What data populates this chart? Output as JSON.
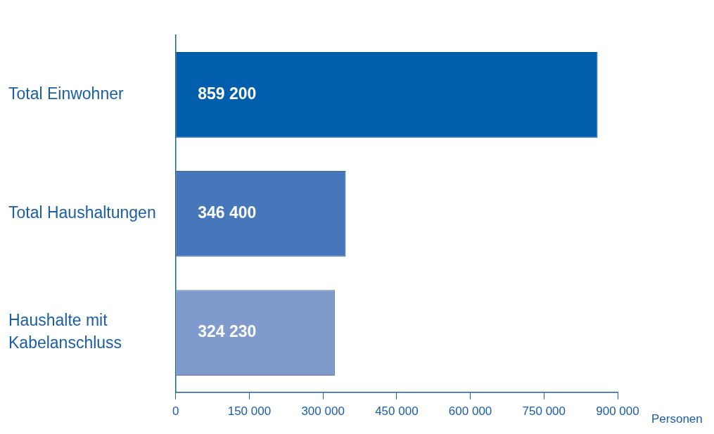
{
  "chart_data": {
    "type": "bar",
    "orientation": "horizontal",
    "categories": [
      "Total Einwohner",
      "Total Haushaltungen",
      "Haushalte mit Kabelanschluss"
    ],
    "values": [
      859200,
      346400,
      324230
    ],
    "colors": [
      "#005ead",
      "#4677bb",
      "#7f9acc"
    ],
    "value_labels": [
      "859 200",
      "346 400",
      "324 230"
    ],
    "xlabel": "Personen",
    "xlim": [
      0,
      900000
    ],
    "xticks": [
      0,
      {
        "value": 150000,
        "label": "150 000"
      },
      {
        "value": 300000,
        "label": "300 000"
      },
      {
        "value": 450000,
        "label": "450 000"
      },
      {
        "value": 600000,
        "label": "600 000"
      },
      {
        "value": 750000,
        "label": "750 000"
      },
      {
        "value": 900000,
        "label": "900 000"
      }
    ],
    "legend": false
  }
}
